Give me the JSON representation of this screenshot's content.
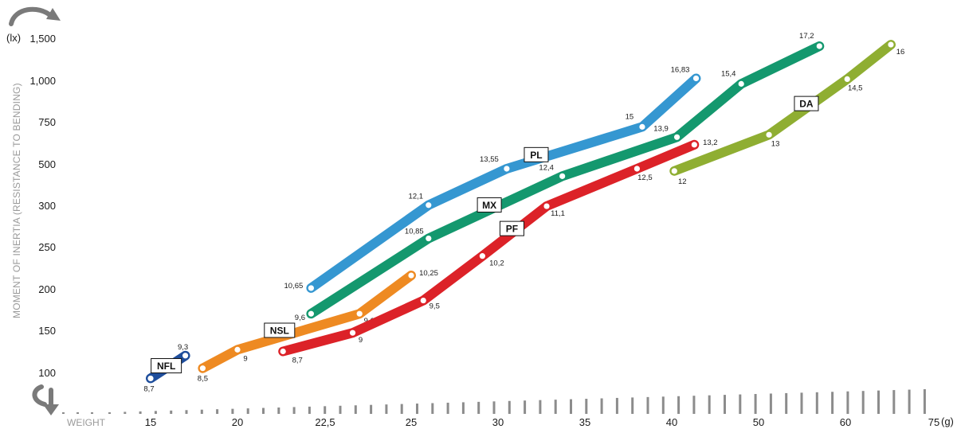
{
  "chart_data": {
    "type": "line",
    "ylabel": "MOMENT OF INERTIA (RESISTANCE TO BENDING)",
    "y_unit": "(lx)",
    "y_ticks": [
      "1,500",
      "1,000",
      "750",
      "500",
      "300",
      "250",
      "200",
      "150",
      "100"
    ],
    "xlabel": "WEIGHT",
    "x_unit": "(g)",
    "x_ticks": [
      "15",
      "20",
      "22,5",
      "25",
      "30",
      "35",
      "40",
      "50",
      "60",
      "75"
    ],
    "series": [
      {
        "name": "NFL",
        "color": "#1f4e9c",
        "points": [
          {
            "x": 15,
            "y": 93,
            "label": "8,7"
          },
          {
            "x": 17,
            "y": 120,
            "label": "9,3"
          }
        ]
      },
      {
        "name": "NSL",
        "color": "#ee8a22",
        "points": [
          {
            "x": 18,
            "y": 105,
            "label": "8,5"
          },
          {
            "x": 20,
            "y": 127,
            "label": "9"
          },
          {
            "x": 23.5,
            "y": 170,
            "label": "9,6"
          },
          {
            "x": 25,
            "y": 216,
            "label": "10,25"
          }
        ]
      },
      {
        "name": "PF",
        "color": "#dc2228",
        "points": [
          {
            "x": 21.3,
            "y": 125,
            "label": "8,7"
          },
          {
            "x": 23.3,
            "y": 147,
            "label": "9"
          },
          {
            "x": 25.7,
            "y": 186,
            "label": "9,5"
          },
          {
            "x": 29.1,
            "y": 239,
            "label": "10,2"
          },
          {
            "x": 32.8,
            "y": 299,
            "label": "11,1"
          },
          {
            "x": 38,
            "y": 477,
            "label": "12,5"
          },
          {
            "x": 42.6,
            "y": 614,
            "label": "13,2"
          }
        ]
      },
      {
        "name": "MX",
        "color": "#14986e",
        "points": [
          {
            "x": 22.1,
            "y": 170,
            "label": "9,6"
          },
          {
            "x": 26,
            "y": 260,
            "label": "10,85"
          },
          {
            "x": 33.7,
            "y": 441,
            "label": "12,4"
          },
          {
            "x": 40.6,
            "y": 659,
            "label": "13,9"
          },
          {
            "x": 48,
            "y": 979,
            "label": "15,4"
          },
          {
            "x": 57,
            "y": 1406,
            "label": "17,2"
          }
        ]
      },
      {
        "name": "PL",
        "color": "#3597d1",
        "points": [
          {
            "x": 22.1,
            "y": 201,
            "label": "10,65"
          },
          {
            "x": 26,
            "y": 301,
            "label": "12,1"
          },
          {
            "x": 30.5,
            "y": 477,
            "label": "13,55"
          },
          {
            "x": 38.3,
            "y": 720,
            "label": "15"
          },
          {
            "x": 42.8,
            "y": 1024,
            "label": "16,83"
          }
        ]
      },
      {
        "name": "DA",
        "color": "#8fae32",
        "points": [
          {
            "x": 40.3,
            "y": 466,
            "label": "12"
          },
          {
            "x": 51.2,
            "y": 673,
            "label": "13"
          },
          {
            "x": 60.3,
            "y": 1015,
            "label": "14,5"
          },
          {
            "x": 67.7,
            "y": 1424,
            "label": "16"
          }
        ]
      }
    ]
  }
}
